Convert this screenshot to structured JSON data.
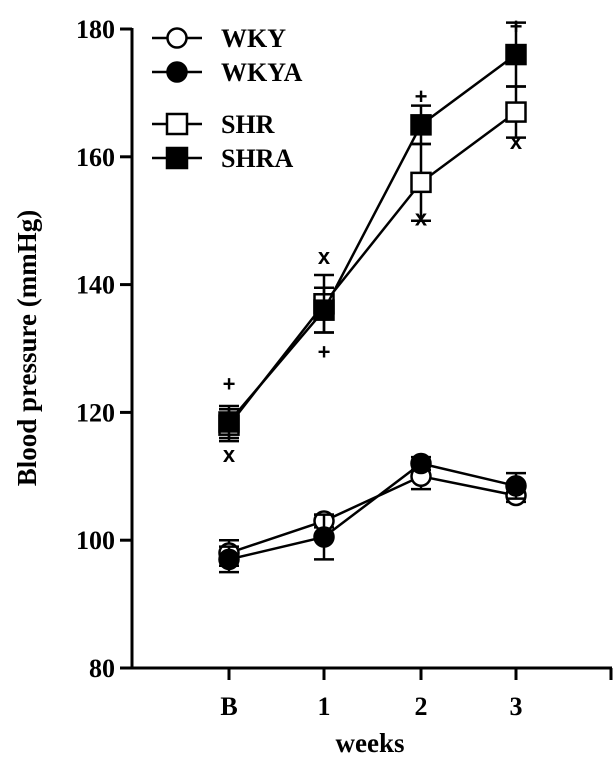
{
  "chart_data": {
    "type": "line",
    "title": "",
    "xlabel": "weeks",
    "ylabel": "Blood pressure (mmHg)",
    "categories": [
      "B",
      "1",
      "2",
      "3"
    ],
    "ylim": [
      80,
      180
    ],
    "yticks": [
      80,
      100,
      120,
      140,
      160,
      180
    ],
    "grid": false,
    "legend_position": "top-left",
    "series": [
      {
        "name": "WKY",
        "marker": "circle-open",
        "values": [
          98,
          103,
          110,
          107
        ],
        "errors": [
          2,
          1,
          2,
          1
        ]
      },
      {
        "name": "WKYA",
        "marker": "circle-filled",
        "values": [
          97,
          100.5,
          112,
          108.5
        ],
        "errors": [
          2,
          3.5,
          1,
          2
        ]
      },
      {
        "name": "SHR",
        "marker": "square-open",
        "values": [
          118,
          137,
          156,
          167
        ],
        "errors": [
          2.5,
          4.5,
          6,
          4
        ]
      },
      {
        "name": "SHRA",
        "marker": "square-filled",
        "values": [
          118.5,
          136,
          165,
          176
        ],
        "errors": [
          2.5,
          3.5,
          3,
          5
        ]
      }
    ],
    "annotations": [
      {
        "category": "B",
        "value": 124.5,
        "text": "+"
      },
      {
        "category": "B",
        "value": 113.5,
        "text": "x"
      },
      {
        "category": "1",
        "value": 144.5,
        "text": "x"
      },
      {
        "category": "1",
        "value": 129.5,
        "text": "+"
      },
      {
        "category": "2",
        "value": 169.5,
        "text": "+"
      },
      {
        "category": "2",
        "value": 150.5,
        "text": "x"
      },
      {
        "category": "3",
        "value": 180.5,
        "text": "+"
      },
      {
        "category": "3",
        "value": 162.5,
        "text": "x"
      }
    ]
  }
}
